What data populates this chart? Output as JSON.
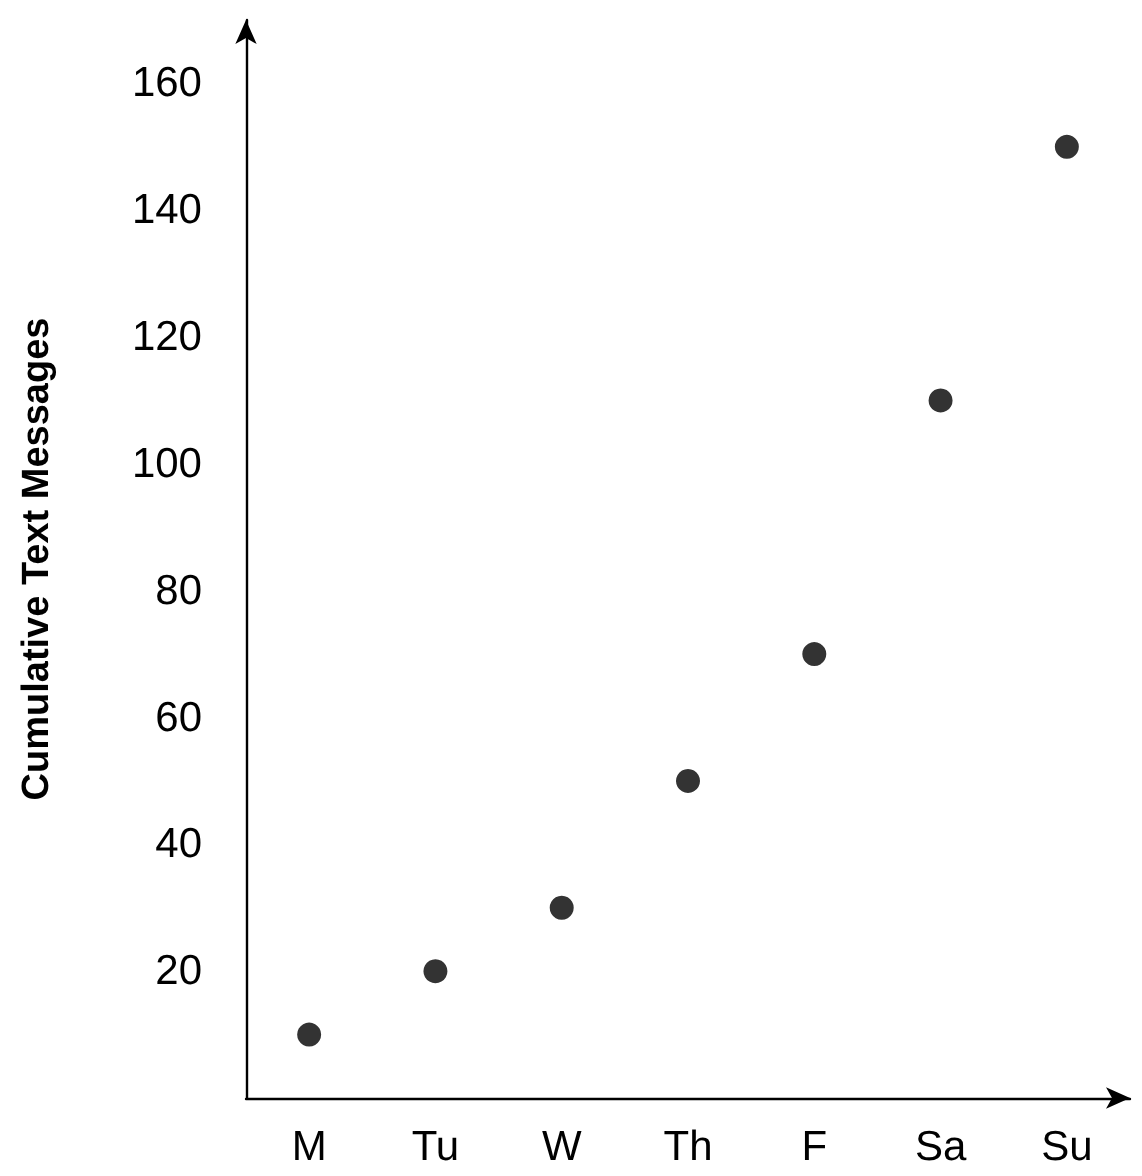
{
  "chart_data": {
    "type": "scatter",
    "ylabel": "Cumulative Text Messages",
    "categories": [
      "M",
      "Tu",
      "W",
      "Th",
      "F",
      "Sa",
      "Su"
    ],
    "series": [
      {
        "color": "#000000",
        "values": [
          10,
          20,
          30,
          50,
          70,
          110,
          150
        ]
      }
    ],
    "ylim": [
      0,
      170
    ],
    "yticks": [
      20,
      40,
      60,
      80,
      100,
      120,
      140,
      160
    ],
    "grid": false,
    "marker": "circle"
  }
}
